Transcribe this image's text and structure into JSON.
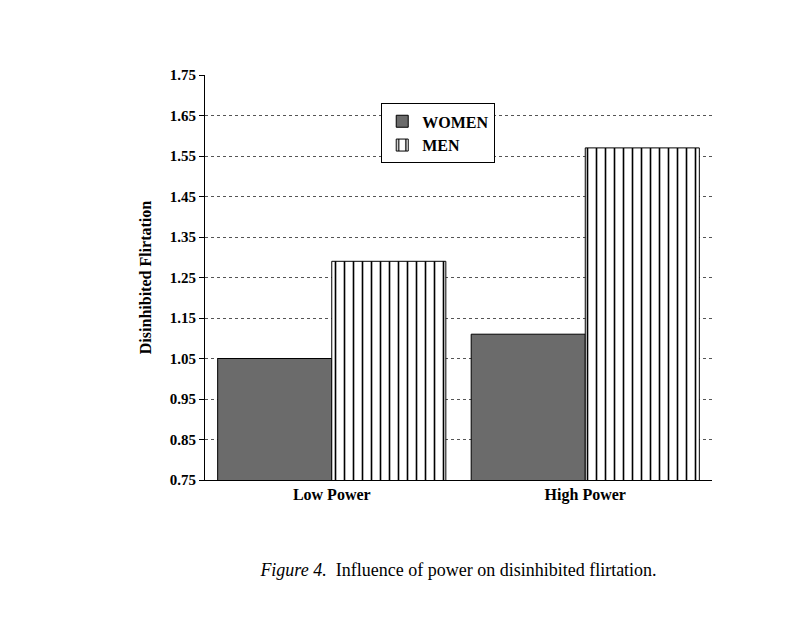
{
  "chart_data": {
    "type": "bar",
    "title": "Figure 4.  Influence of power on disinhibited flirtation.",
    "y_label": "Disinhibited Flirtation",
    "categories": [
      "Low Power",
      "High Power"
    ],
    "series": [
      {
        "name": "WOMEN",
        "color": "#6b6b6b",
        "marker": "solid",
        "values": [
          1.05,
          1.11
        ]
      },
      {
        "name": "MEN",
        "color": "#ffffff",
        "marker": "vertical_stripes",
        "values": [
          1.29,
          1.57
        ]
      }
    ],
    "ylim": [
      0.75,
      1.75
    ],
    "yticks": [
      0.75,
      0.85,
      0.95,
      1.05,
      1.15,
      1.25,
      1.35,
      1.45,
      1.55,
      1.65,
      1.75
    ],
    "grid": true,
    "legend": "upper center"
  }
}
